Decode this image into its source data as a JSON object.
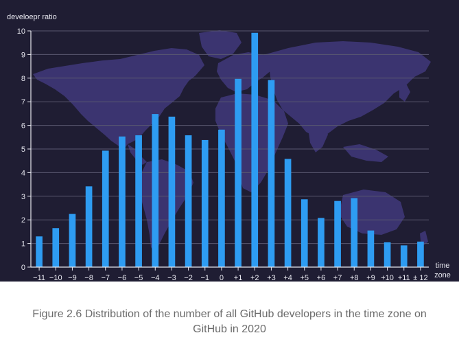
{
  "chart_data": {
    "type": "bar",
    "ylabel": "develoepr ratio",
    "xlabel": "time zone",
    "xlabel_lines": [
      "time",
      "zone"
    ],
    "categories": [
      "−11",
      "−10",
      "−9",
      "−8",
      "−7",
      "−6",
      "−5",
      "−4",
      "−3",
      "−2",
      "−1",
      "0",
      "+1",
      "+2",
      "+3",
      "+4",
      "+5",
      "+6",
      "+7",
      "+8",
      "+9",
      "+10",
      "+11",
      "± 12"
    ],
    "values": [
      1.3,
      1.65,
      2.25,
      3.42,
      4.93,
      5.53,
      5.58,
      6.48,
      6.37,
      5.58,
      5.38,
      5.82,
      7.97,
      9.92,
      7.92,
      4.58,
      2.87,
      2.08,
      2.8,
      2.92,
      1.55,
      1.05,
      0.92,
      1.08
    ],
    "ylim": [
      0,
      10
    ],
    "yticks": [
      0,
      1,
      2,
      3,
      4,
      5,
      6,
      7,
      8,
      9,
      10
    ],
    "grid": true,
    "colors": {
      "background": "#1f1d33",
      "map": "#3b3470",
      "bar": "#2e9cf2",
      "grid": "#5a5870",
      "axis": "#e8e8f0",
      "text": "#e8e8f0"
    }
  },
  "caption": {
    "line1": "Figure 2.6 Distribution of the number of all GitHub developers in the time zone on",
    "line2": "GitHub in 2020"
  }
}
